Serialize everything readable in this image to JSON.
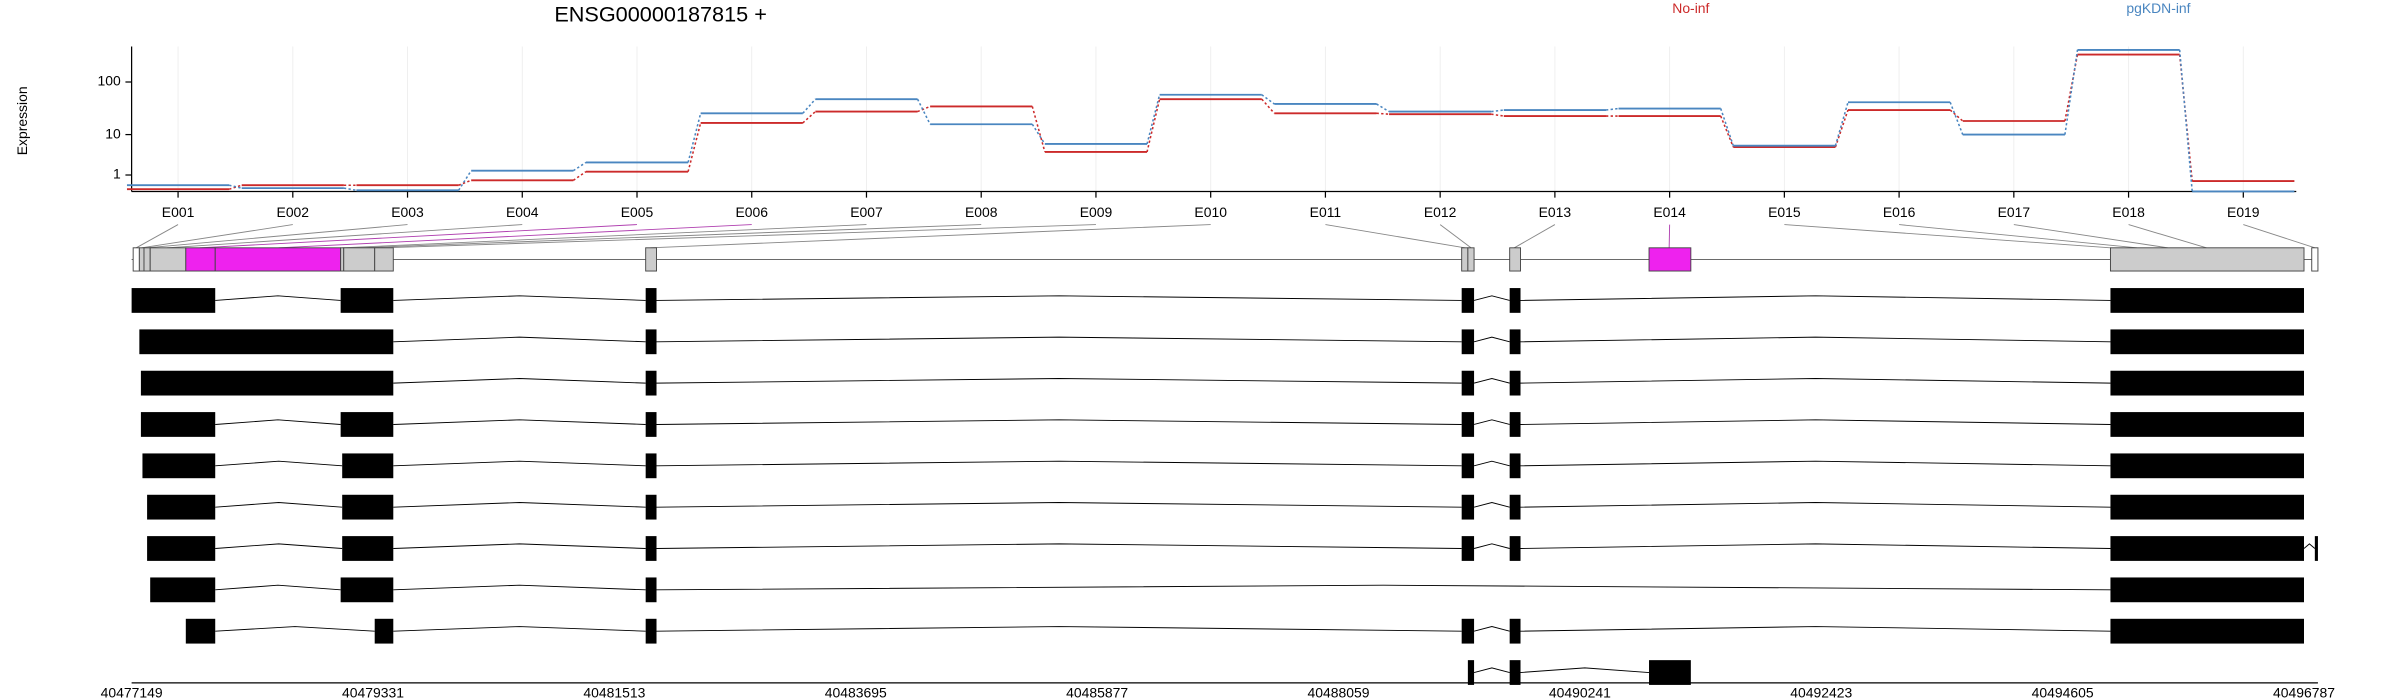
{
  "chart_data": [
    {
      "type": "line",
      "title": "ENSG00000187815 +",
      "ylabel": "Expression",
      "yscale": "log1p",
      "categories": [
        "E001",
        "E002",
        "E003",
        "E004",
        "E005",
        "E006",
        "E007",
        "E008",
        "E009",
        "E010",
        "E011",
        "E012",
        "E013",
        "E014",
        "E015",
        "E016",
        "E017",
        "E018",
        "E019"
      ],
      "series": [
        {
          "name": "No-inf",
          "color": "#cc2a2a",
          "values": [
            0.1,
            0.3,
            0.3,
            0.6,
            1.3,
            17,
            28,
            35,
            4.3,
            48,
            26,
            25,
            23,
            23,
            5.5,
            30,
            18.5,
            320,
            0.55
          ]
        },
        {
          "name": "pgKDN-inf",
          "color": "#4a86c0",
          "values": [
            0.3,
            0.15,
            0.05,
            1.4,
            2.4,
            26,
            48,
            16,
            6.4,
            58,
            39,
            28,
            30,
            32,
            5.9,
            42,
            10,
            390,
            0
          ]
        }
      ],
      "ylim": [
        0,
        450
      ],
      "yticks": [
        1,
        10,
        100
      ],
      "grid": true
    },
    {
      "type": "transcripts",
      "xlim": [
        40477149,
        40496787
      ],
      "xticks": [
        40477149,
        40479331,
        40481513,
        40483695,
        40485877,
        40488059,
        40490241,
        40492423,
        40494605,
        40496787
      ]
    }
  ]
}
